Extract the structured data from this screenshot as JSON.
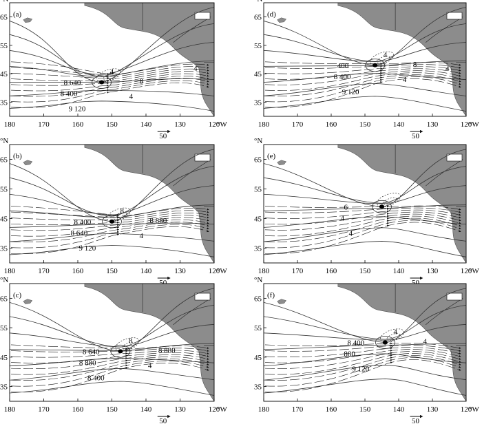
{
  "figure": {
    "lat_unit": "°N",
    "lon_unit": "°W",
    "lon_ticks": [
      "180",
      "170",
      "160",
      "150",
      "140",
      "130",
      "120"
    ],
    "lat_ticks": [
      "65",
      "55",
      "45",
      "35"
    ],
    "reference_vector_label": "50"
  },
  "panels": [
    {
      "id": "a",
      "label": "(a)",
      "contour_labels": [
        "8 640",
        "8 400",
        "9 120",
        "8",
        "4",
        "4",
        "4"
      ],
      "center": {
        "lon": 153,
        "lat": 42
      }
    },
    {
      "id": "b",
      "label": "(b)",
      "contour_labels": [
        "8 400",
        "8 640",
        "9 120",
        "8 880",
        "8",
        "4"
      ],
      "center": {
        "lon": 150,
        "lat": 44
      }
    },
    {
      "id": "c",
      "label": "(c)",
      "contour_labels": [
        "8 640",
        "8 880",
        "8 400",
        "8 880",
        "8",
        "4"
      ],
      "center": {
        "lon": 147.5,
        "lat": 47
      }
    },
    {
      "id": "d",
      "label": "(d)",
      "contour_labels": [
        "400",
        "8 400",
        "9 120",
        "8",
        "4",
        "4",
        "4"
      ],
      "center": {
        "lon": 147,
        "lat": 48
      }
    },
    {
      "id": "e",
      "label": "(e)",
      "contour_labels": [
        "6",
        "4",
        "4"
      ],
      "center": {
        "lon": 145,
        "lat": 49
      }
    },
    {
      "id": "f",
      "label": "(f)",
      "contour_labels": [
        "8 400",
        "880",
        "9 120",
        "4",
        "4"
      ],
      "center": {
        "lon": 144,
        "lat": 50
      }
    }
  ]
}
